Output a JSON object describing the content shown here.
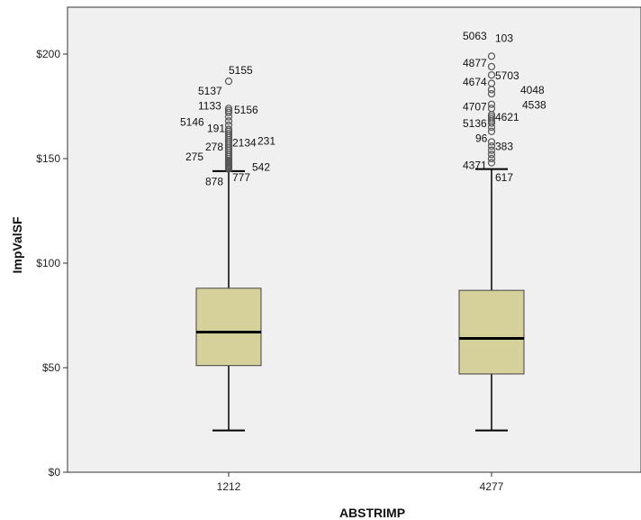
{
  "chart_data": {
    "type": "boxplot",
    "xlabel": "ABSTRIMP",
    "ylabel": "ImpValSF",
    "ylim": [
      0,
      210
    ],
    "yticks": [
      {
        "value": 0,
        "label": "$0"
      },
      {
        "value": 50,
        "label": "$50"
      },
      {
        "value": 100,
        "label": "$100"
      },
      {
        "value": 150,
        "label": "$150"
      },
      {
        "value": 200,
        "label": "$200"
      }
    ],
    "categories": [
      "1212",
      "4277"
    ],
    "colors": {
      "plot_background": "#f0f0f0",
      "box_fill": "#d6d09a",
      "box_stroke": "#444444",
      "median": "#000000",
      "outlier_stroke": "#555555"
    },
    "boxes": [
      {
        "category": "1212",
        "whisker_low": 20,
        "q1": 51,
        "median": 67,
        "q3": 88,
        "whisker_high": 144,
        "outliers": [
          145,
          145.5,
          146,
          146.5,
          147,
          147.5,
          148,
          148.5,
          149,
          150,
          151,
          152,
          153,
          154,
          155,
          156,
          157,
          158,
          159,
          160,
          161,
          162,
          163,
          164,
          166,
          168,
          170,
          172,
          173,
          174,
          187
        ],
        "outlier_labels": [
          {
            "id": "5155",
            "y": 187
          },
          {
            "id": "5137",
            "y": 178
          },
          {
            "id": "1133",
            "y": 171
          },
          {
            "id": "5156",
            "y": 169
          },
          {
            "id": "5146",
            "y": 164
          },
          {
            "id": "191",
            "y": 161
          },
          {
            "id": "2134",
            "y": 154
          },
          {
            "id": "231",
            "y": 155
          },
          {
            "id": "278",
            "y": 153
          },
          {
            "id": "275",
            "y": 150
          },
          {
            "id": "542",
            "y": 145
          },
          {
            "id": "777",
            "y": 141
          },
          {
            "id": "878",
            "y": 139
          }
        ]
      },
      {
        "category": "4277",
        "whisker_low": 20,
        "q1": 47,
        "median": 64,
        "q3": 87,
        "whisker_high": 145,
        "outliers": [
          148,
          150,
          152,
          154,
          156,
          158,
          163,
          165,
          167,
          168,
          169,
          170,
          171,
          174,
          176,
          181,
          183,
          186,
          190,
          194,
          199
        ],
        "outlier_labels": [
          {
            "id": "5063",
            "y": 206
          },
          {
            "id": "103",
            "y": 205
          },
          {
            "id": "4877",
            "y": 194
          },
          {
            "id": "5703",
            "y": 188
          },
          {
            "id": "4674",
            "y": 185
          },
          {
            "id": "4048",
            "y": 181
          },
          {
            "id": "4538",
            "y": 174
          },
          {
            "id": "4707",
            "y": 173
          },
          {
            "id": "4621",
            "y": 168
          },
          {
            "id": "5136",
            "y": 165
          },
          {
            "id": "96",
            "y": 158
          },
          {
            "id": "383",
            "y": 154
          },
          {
            "id": "4371",
            "y": 145
          },
          {
            "id": "617",
            "y": 141
          }
        ]
      }
    ]
  }
}
